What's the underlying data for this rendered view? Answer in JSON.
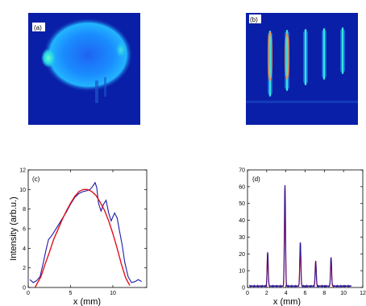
{
  "figure": {
    "panels": [
      {
        "id": "a",
        "label": "(a)",
        "kind": "image",
        "content": "elliptical blue light spot on dark blue background"
      },
      {
        "id": "b",
        "label": "(b)",
        "kind": "image",
        "content": "series of vertical bright fringes on dark blue background"
      }
    ],
    "colors": {
      "image_background": "#0a1fa8",
      "image_glow": "#1fa0ff",
      "image_hot": "#3ef0e0",
      "fringe_highlight": "#ff8a3a",
      "measured_curve": "#1a1aa8",
      "fit_curve": "#e0101a",
      "axis": "#000000"
    }
  },
  "chart_data": [
    {
      "id": "c",
      "label": "(c)",
      "type": "line",
      "title": "",
      "xlabel": "x (mm)",
      "ylabel": "Intensity (arb.u.)",
      "xlim": [
        0,
        14
      ],
      "ylim": [
        0,
        12
      ],
      "xticks": [
        0,
        5,
        10
      ],
      "yticks": [
        0,
        2,
        4,
        6,
        8,
        10,
        12
      ],
      "grid": false,
      "legend": "none",
      "series": [
        {
          "role": "measured",
          "color": "#1a1aa8",
          "x": [
            0.2,
            0.6,
            1.0,
            1.4,
            1.8,
            2.1,
            2.4,
            2.7,
            3.0,
            3.5,
            4.0,
            4.5,
            5.0,
            5.5,
            6.0,
            6.5,
            7.0,
            7.3,
            7.6,
            7.9,
            8.1,
            8.3,
            8.6,
            8.9,
            9.2,
            9.5,
            9.8,
            10.2,
            10.5,
            10.8,
            11.1,
            11.4,
            11.8,
            12.2,
            12.6,
            13.0,
            13.4
          ],
          "y": [
            0.8,
            0.5,
            0.7,
            1.1,
            2.6,
            3.8,
            4.9,
            5.2,
            5.6,
            6.3,
            7.0,
            7.7,
            8.5,
            9.2,
            9.6,
            9.8,
            9.9,
            10.0,
            10.3,
            10.7,
            10.2,
            8.6,
            7.8,
            8.5,
            8.9,
            7.6,
            6.8,
            7.6,
            7.1,
            5.7,
            4.3,
            2.6,
            1.1,
            0.5,
            0.6,
            0.8,
            0.6
          ]
        },
        {
          "role": "fit",
          "color": "#e0101a",
          "x": [
            0.8,
            1.5,
            2.0,
            2.5,
            3.0,
            3.5,
            4.0,
            4.5,
            5.0,
            5.5,
            6.0,
            6.5,
            7.0,
            7.5,
            8.0,
            8.5,
            9.0,
            9.5,
            10.0,
            10.5,
            11.0,
            11.5,
            12.0
          ],
          "y": [
            0.0,
            1.1,
            2.4,
            3.6,
            4.9,
            5.9,
            6.9,
            7.8,
            8.6,
            9.3,
            9.8,
            10.0,
            10.0,
            9.8,
            9.4,
            8.7,
            7.9,
            6.8,
            5.5,
            4.0,
            2.4,
            1.0,
            0.2
          ]
        }
      ]
    },
    {
      "id": "d",
      "label": "(d)",
      "type": "line",
      "title": "",
      "xlabel": "x (mm)",
      "ylabel": "",
      "xlim": [
        0,
        12
      ],
      "ylim": [
        0,
        70
      ],
      "xticks": [
        0,
        2,
        4,
        6,
        8,
        10,
        12
      ],
      "yticks": [
        0,
        10,
        20,
        30,
        40,
        50,
        60,
        70
      ],
      "grid": false,
      "legend": "none",
      "baseline": 0.8,
      "peaks": [
        {
          "x": 2.1,
          "height": 20
        },
        {
          "x": 3.9,
          "height": 60
        },
        {
          "x": 5.5,
          "height": 26
        },
        {
          "x": 7.1,
          "height": 15
        },
        {
          "x": 8.7,
          "height": 17
        }
      ],
      "series": [
        {
          "role": "measured",
          "color": "#1a1aa8"
        },
        {
          "role": "fit",
          "color": "#e0101a"
        }
      ]
    }
  ]
}
